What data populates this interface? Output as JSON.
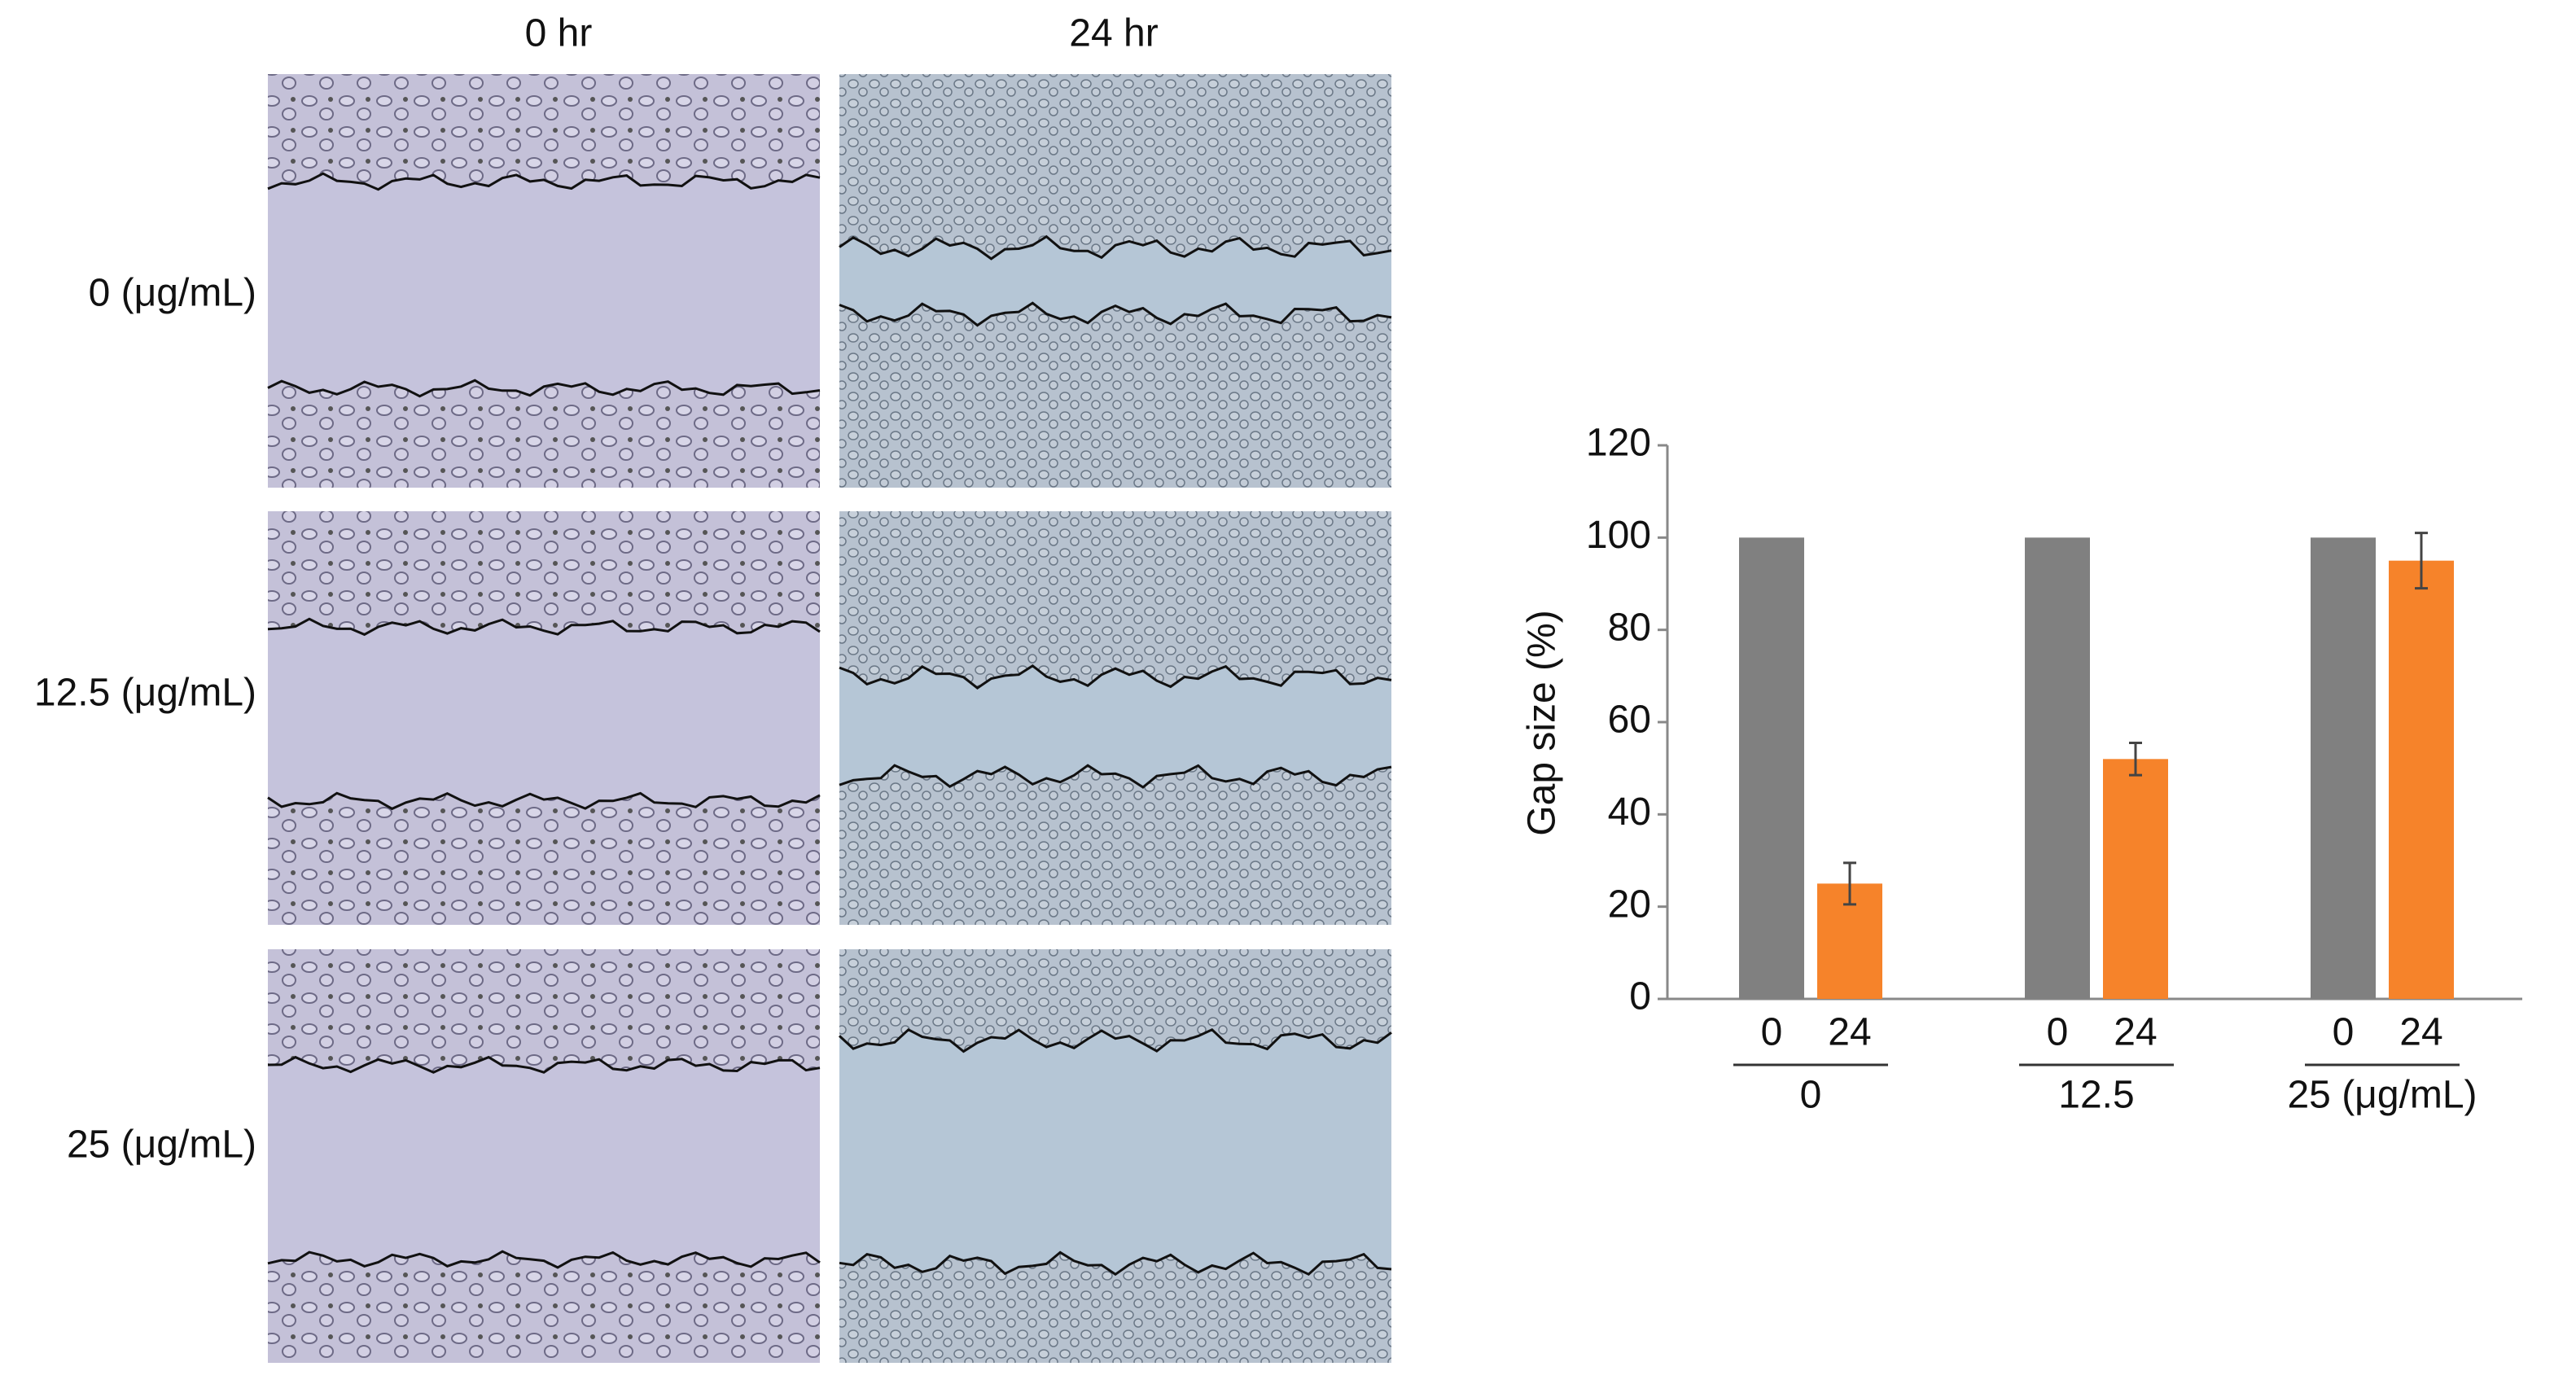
{
  "panels": {
    "columns": [
      "0 hr",
      "24 hr"
    ],
    "rows": [
      "0 (μg/mL)",
      "12.5 (μg/mL)",
      "25 (μg/mL)"
    ]
  },
  "chart_data": {
    "type": "bar",
    "y_label": "Gap size (%)",
    "categories": [
      "0",
      "12.5",
      "25 (μg/mL)"
    ],
    "series": [
      {
        "name": "0",
        "color": "#808080",
        "values": [
          100,
          100,
          100
        ]
      },
      {
        "name": "24",
        "color": "#f6832a",
        "values": [
          25,
          52,
          95
        ],
        "errors": [
          4.5,
          3.5,
          6
        ]
      }
    ],
    "ylim": [
      0,
      120
    ],
    "yticks": [
      0,
      20,
      40,
      60,
      80,
      100,
      120
    ],
    "grid": false
  }
}
